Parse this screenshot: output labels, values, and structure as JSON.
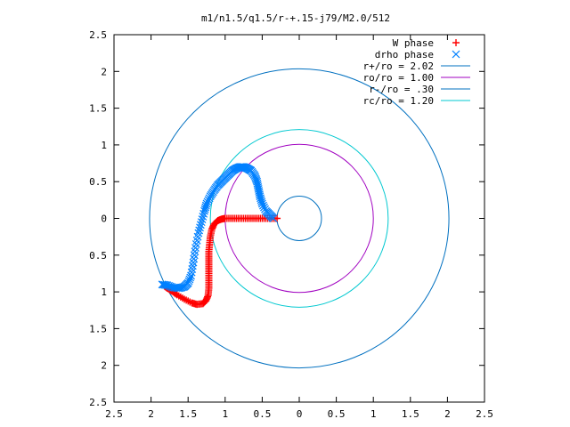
{
  "chart_data": {
    "type": "scatter",
    "title": "m1/n1.5/q1.5/r-+.15-j79/M2.0/512",
    "xlim": [
      2.5,
      -2.5
    ],
    "ylim": [
      2.5,
      -2.5
    ],
    "xticks": [
      2.5,
      2,
      1.5,
      1,
      0.5,
      0,
      0.5,
      1,
      1.5,
      2,
      2.5
    ],
    "xtick_labels": [
      "2.5",
      "2",
      "1.5",
      "1",
      "0.5",
      "0",
      "0.5",
      "1",
      "1.5",
      "2",
      "2.5"
    ],
    "yticks": [
      2.5,
      2,
      1.5,
      1,
      0.5,
      0,
      0.5,
      1,
      1.5,
      2,
      2.5
    ],
    "ytick_labels": [
      "2.5",
      "2",
      "1.5",
      "1",
      "0.5",
      "0",
      "0.5",
      "1",
      "1.5",
      "2",
      "2.5"
    ],
    "grid": false,
    "legend_position": "top-right",
    "series": [
      {
        "name": "W phase",
        "kind": "points",
        "marker": "plus",
        "color": "#ff0000",
        "points": [
          [
            0.3,
            0.0
          ],
          [
            0.4,
            0.0
          ],
          [
            0.5,
            0.0
          ],
          [
            0.6,
            0.0
          ],
          [
            0.7,
            0.0
          ],
          [
            0.8,
            0.0
          ],
          [
            0.9,
            0.0
          ],
          [
            1.0,
            0.0
          ],
          [
            1.05,
            -0.01
          ],
          [
            1.1,
            -0.03
          ],
          [
            1.15,
            -0.08
          ],
          [
            1.18,
            -0.15
          ],
          [
            1.2,
            -0.25
          ],
          [
            1.21,
            -0.35
          ],
          [
            1.22,
            -0.45
          ],
          [
            1.22,
            -0.55
          ],
          [
            1.22,
            -0.65
          ],
          [
            1.22,
            -0.75
          ],
          [
            1.22,
            -0.85
          ],
          [
            1.22,
            -0.95
          ],
          [
            1.23,
            -1.05
          ],
          [
            1.26,
            -1.12
          ],
          [
            1.3,
            -1.16
          ],
          [
            1.38,
            -1.17
          ],
          [
            1.45,
            -1.15
          ],
          [
            1.55,
            -1.1
          ],
          [
            1.65,
            -1.04
          ],
          [
            1.72,
            -0.99
          ],
          [
            1.78,
            -0.95
          ],
          [
            1.82,
            -0.92
          ]
        ]
      },
      {
        "name": "drho phase",
        "kind": "points",
        "marker": "cross",
        "color": "#0080ff",
        "points": [
          [
            0.35,
            0.0
          ],
          [
            0.4,
            0.05
          ],
          [
            0.45,
            0.1
          ],
          [
            0.5,
            0.2
          ],
          [
            0.53,
            0.3
          ],
          [
            0.55,
            0.4
          ],
          [
            0.57,
            0.5
          ],
          [
            0.6,
            0.58
          ],
          [
            0.65,
            0.65
          ],
          [
            0.7,
            0.68
          ],
          [
            0.75,
            0.7
          ],
          [
            0.8,
            0.7
          ],
          [
            0.85,
            0.68
          ],
          [
            0.9,
            0.65
          ],
          [
            0.95,
            0.6
          ],
          [
            1.0,
            0.55
          ],
          [
            1.05,
            0.5
          ],
          [
            1.1,
            0.45
          ],
          [
            1.15,
            0.38
          ],
          [
            1.2,
            0.3
          ],
          [
            1.25,
            0.2
          ],
          [
            1.28,
            0.1
          ],
          [
            1.32,
            -0.05
          ],
          [
            1.36,
            -0.2
          ],
          [
            1.4,
            -0.4
          ],
          [
            1.43,
            -0.6
          ],
          [
            1.46,
            -0.78
          ],
          [
            1.5,
            -0.88
          ],
          [
            1.55,
            -0.93
          ],
          [
            1.62,
            -0.95
          ],
          [
            1.7,
            -0.94
          ],
          [
            1.78,
            -0.91
          ],
          [
            1.85,
            -0.9
          ]
        ]
      },
      {
        "name": "r+/ro = 2.02",
        "kind": "circle",
        "radius": 2.02,
        "color": "#0070c0"
      },
      {
        "name": "ro/ro = 1.00",
        "kind": "circle",
        "radius": 1.0,
        "color": "#a000c0"
      },
      {
        "name": "r-/ro = .30",
        "kind": "circle",
        "radius": 0.3,
        "color": "#0070c0"
      },
      {
        "name": "rc/ro = 1.20",
        "kind": "circle",
        "radius": 1.2,
        "color": "#00c8d0"
      }
    ]
  }
}
